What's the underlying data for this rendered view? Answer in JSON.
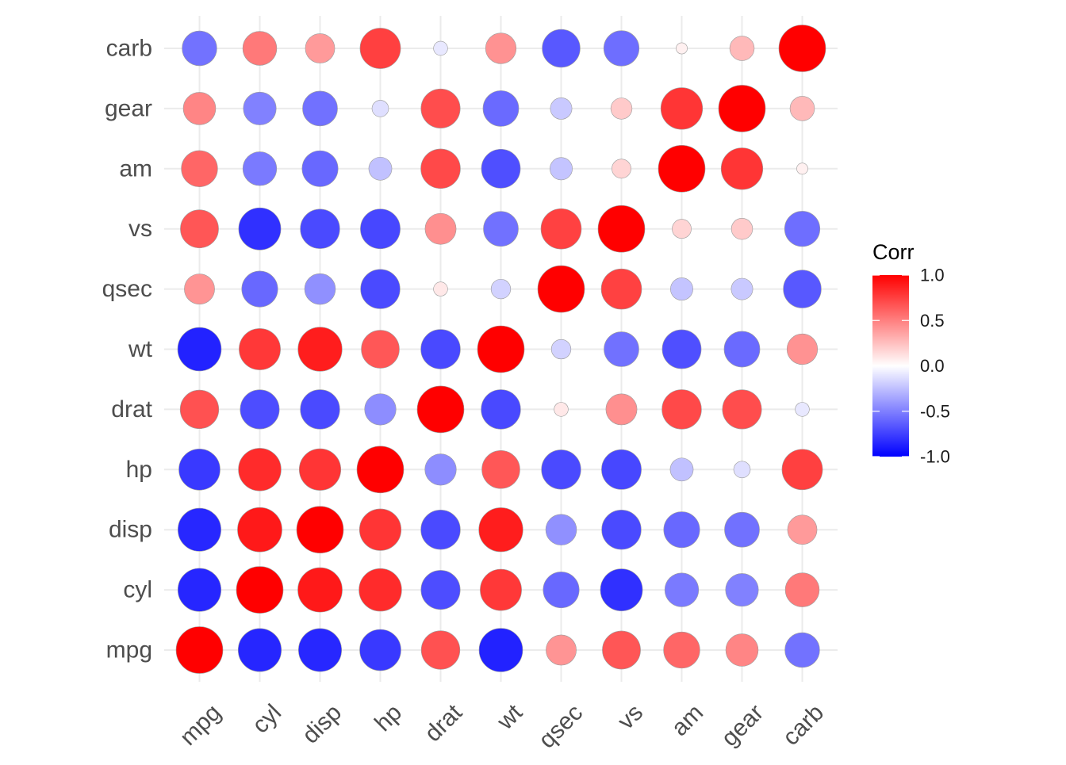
{
  "chart_data": {
    "type": "heatmap",
    "variables": [
      "mpg",
      "cyl",
      "disp",
      "hp",
      "drat",
      "wt",
      "qsec",
      "vs",
      "am",
      "gear",
      "carb"
    ],
    "matrix": [
      [
        1.0,
        -0.852,
        -0.848,
        -0.776,
        0.681,
        -0.868,
        0.419,
        0.664,
        0.6,
        0.48,
        -0.551
      ],
      [
        -0.852,
        1.0,
        0.902,
        0.832,
        -0.7,
        0.782,
        -0.591,
        -0.811,
        -0.523,
        -0.493,
        0.527
      ],
      [
        -0.848,
        0.902,
        1.0,
        0.791,
        -0.71,
        0.888,
        -0.434,
        -0.71,
        -0.591,
        -0.556,
        0.395
      ],
      [
        -0.776,
        0.832,
        0.791,
        1.0,
        -0.449,
        0.659,
        -0.708,
        -0.723,
        -0.243,
        -0.126,
        0.75
      ],
      [
        0.681,
        -0.7,
        -0.71,
        -0.449,
        1.0,
        -0.712,
        0.091,
        0.44,
        0.713,
        0.7,
        -0.091
      ],
      [
        -0.868,
        0.782,
        0.888,
        0.659,
        -0.712,
        1.0,
        -0.175,
        -0.555,
        -0.692,
        -0.583,
        0.428
      ],
      [
        0.419,
        -0.591,
        -0.434,
        -0.708,
        0.091,
        -0.175,
        1.0,
        0.745,
        -0.23,
        -0.213,
        -0.656
      ],
      [
        0.664,
        -0.811,
        -0.71,
        -0.723,
        0.44,
        -0.555,
        0.745,
        1.0,
        0.168,
        0.206,
        -0.57
      ],
      [
        0.6,
        -0.523,
        -0.591,
        -0.243,
        0.713,
        -0.692,
        -0.23,
        0.168,
        1.0,
        0.794,
        0.058
      ],
      [
        0.48,
        -0.493,
        -0.556,
        -0.126,
        0.7,
        -0.583,
        -0.213,
        0.206,
        0.794,
        1.0,
        0.274
      ],
      [
        -0.551,
        0.527,
        0.395,
        0.75,
        -0.091,
        0.428,
        -0.656,
        -0.57,
        0.058,
        0.274,
        1.0
      ]
    ],
    "legend": {
      "title": "Corr",
      "ticks": [
        "1.0",
        "0.5",
        "0.0",
        "-0.5",
        "-1.0"
      ],
      "limits": [
        -1,
        1
      ],
      "colors": {
        "low": "#0000FF",
        "mid": "#FFFFFF",
        "high": "#FF0000"
      }
    },
    "size_encoding": "abs(corr)",
    "grid": true
  }
}
